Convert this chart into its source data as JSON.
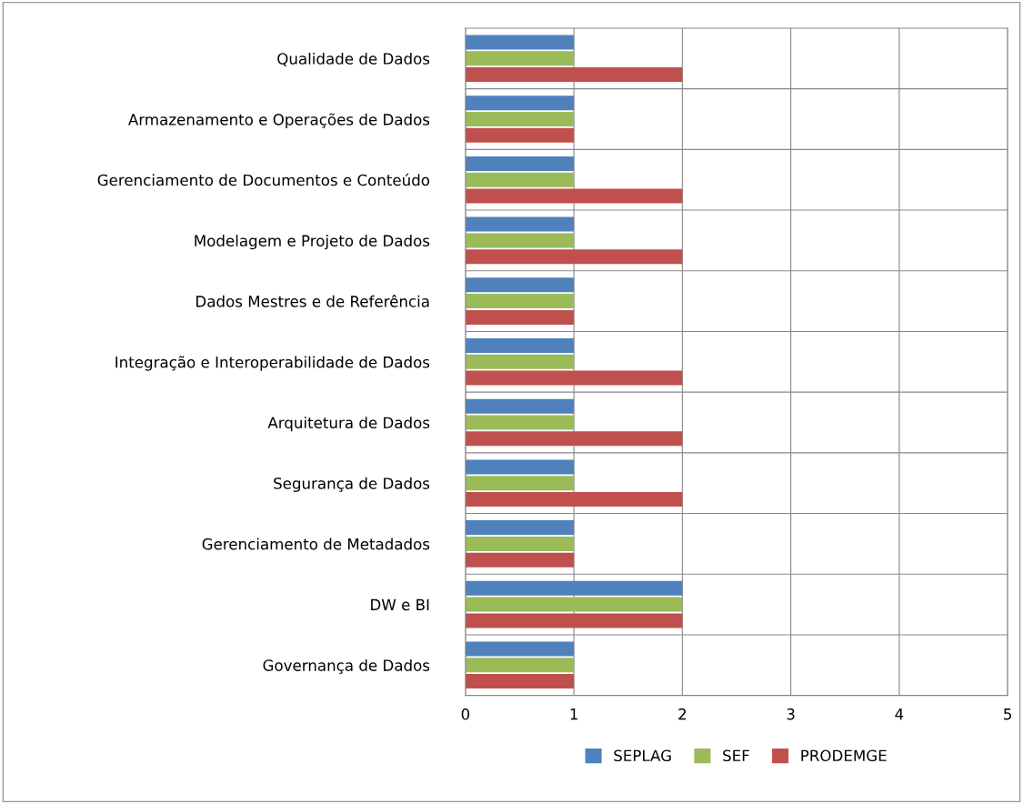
{
  "chart_data": {
    "type": "bar",
    "orientation": "horizontal",
    "categories": [
      "Qualidade de Dados",
      "Armazenamento e Operações de Dados",
      "Gerenciamento de Documentos e Conteúdo",
      "Modelagem e Projeto de Dados",
      "Dados Mestres e de Referência",
      "Integração e Interoperabilidade de Dados",
      "Arquitetura de Dados",
      "Segurança de Dados",
      "Gerenciamento de Metadados",
      "DW e BI",
      "Governança de Dados"
    ],
    "series": [
      {
        "name": "SEPLAG",
        "color": "#4f81bd",
        "values": [
          1,
          1,
          1,
          1,
          1,
          1,
          1,
          1,
          1,
          2,
          1
        ]
      },
      {
        "name": "SEF",
        "color": "#9bbb59",
        "values": [
          1,
          1,
          1,
          1,
          1,
          1,
          1,
          1,
          1,
          2,
          1
        ]
      },
      {
        "name": "PRODEMGE",
        "color": "#c0504d",
        "values": [
          2,
          1,
          2,
          2,
          1,
          2,
          2,
          2,
          1,
          2,
          1
        ]
      }
    ],
    "xlim": [
      0,
      5
    ],
    "xticks": [
      0,
      1,
      2,
      3,
      4,
      5
    ],
    "grid": true,
    "legend": "bottom"
  }
}
